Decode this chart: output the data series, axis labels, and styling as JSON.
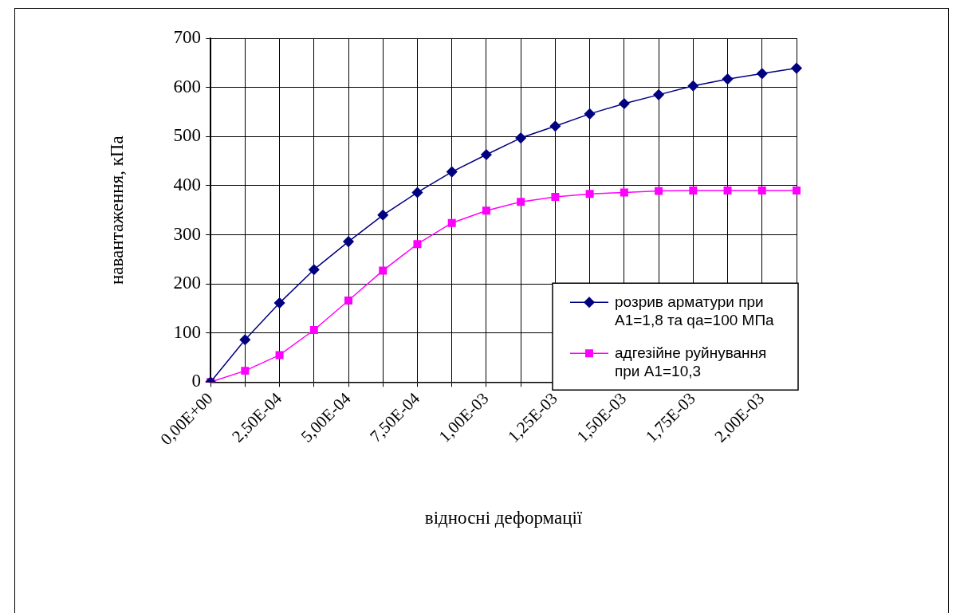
{
  "chart_data": {
    "type": "line",
    "xlabel": "відносні деформації",
    "ylabel": "навантаження, кПа",
    "categories": [
      "0,00E+00",
      null,
      "2,50E-04",
      null,
      "5,00E-04",
      null,
      "7,50E-04",
      null,
      "1,00E-03",
      null,
      "1,25E-03",
      null,
      "1,50E-03",
      null,
      "1,75E-03",
      null,
      "2,00E-03",
      null
    ],
    "series": [
      {
        "name": "розрив арматури при А1=1,8  та qа=100 МПа",
        "color": "#000080",
        "marker": "diamond",
        "values": [
          0,
          86,
          161,
          229,
          286,
          340,
          386,
          428,
          463,
          497,
          521,
          546,
          567,
          585,
          603,
          617,
          628,
          639
        ]
      },
      {
        "name": "адгезійне руйнування  при А1=10,3",
        "color": "#ff00ff",
        "marker": "square",
        "values": [
          0,
          23,
          55,
          106,
          166,
          227,
          281,
          324,
          349,
          367,
          377,
          383,
          386,
          389,
          390,
          390,
          390,
          390
        ]
      }
    ],
    "ylim": [
      0,
      700
    ],
    "yticks": [
      0,
      100,
      200,
      300,
      400,
      500,
      600,
      700
    ],
    "grid": true,
    "legend": "right"
  }
}
